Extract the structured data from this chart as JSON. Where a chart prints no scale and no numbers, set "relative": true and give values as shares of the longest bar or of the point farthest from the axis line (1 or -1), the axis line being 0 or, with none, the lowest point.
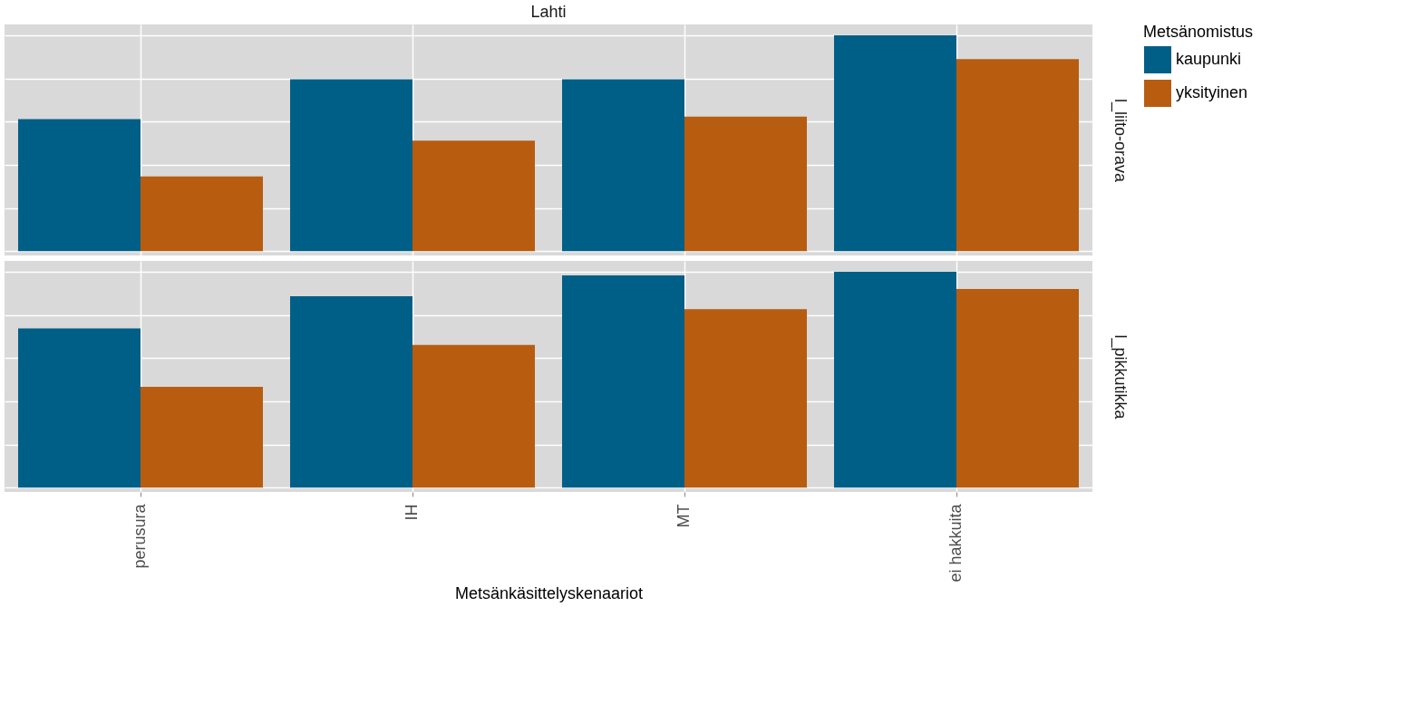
{
  "chart_data": [
    {
      "type": "bar",
      "title": "Lahti",
      "ylabel": "l_liito-orava",
      "relative": true,
      "grid": true,
      "legend": "right",
      "legend_title": "Metsänomistus",
      "tick_labels": false,
      "categories": [
        null,
        null,
        null,
        null
      ],
      "series": [
        {
          "name": "kaupunki",
          "color": "#005f87",
          "values": [
            0.612,
            0.796,
            0.796,
            1
          ]
        },
        {
          "name": "yksityinen",
          "color": "#b85c10",
          "values": [
            0.346,
            0.512,
            0.623,
            0.889
          ]
        }
      ]
    },
    {
      "type": "bar",
      "ylabel": "l_pikkutikka",
      "xlabel": "Metsänkäsittelyskenaariot",
      "relative": true,
      "grid": true,
      "tick_labels": "x",
      "categories": [
        "perusura",
        "IH",
        "MT",
        "ei hakkuita"
      ],
      "series": [
        {
          "color": "#005f87",
          "values": [
            0.737,
            0.886,
            0.983,
            1
          ]
        },
        {
          "color": "#b85c10",
          "values": [
            0.467,
            0.661,
            0.827,
            0.92
          ]
        }
      ]
    }
  ]
}
